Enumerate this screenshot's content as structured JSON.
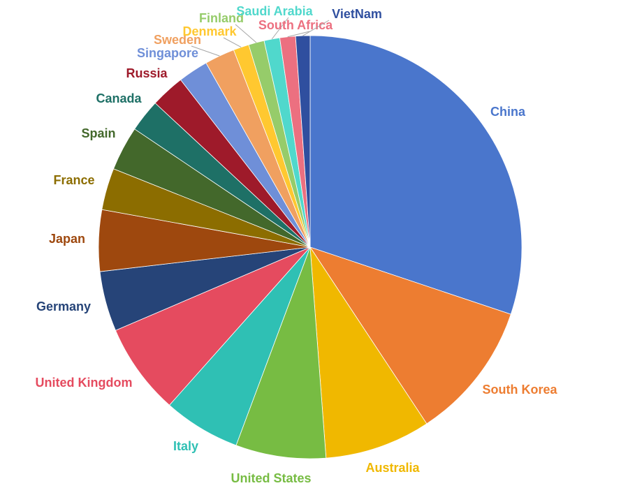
{
  "chart_data": {
    "type": "pie",
    "categories": [
      "China",
      "South Korea",
      "Australia",
      "United States",
      "Italy",
      "United Kingdom",
      "Germany",
      "Japan",
      "France",
      "Spain",
      "Canada",
      "Russia",
      "Singapore",
      "Sweden",
      "Denmark",
      "Finland",
      "Saudi Arabia",
      "South Africa",
      "VietNam"
    ],
    "values": [
      30.2,
      10.6,
      8.1,
      6.9,
      5.9,
      7.0,
      4.6,
      4.7,
      3.2,
      3.4,
      2.5,
      2.6,
      2.3,
      2.3,
      1.2,
      1.2,
      1.2,
      1.2,
      1.1
    ],
    "colors": [
      "#4a76cc",
      "#ed7d31",
      "#f0b800",
      "#77bc43",
      "#2fc0b4",
      "#e54b5f",
      "#264478",
      "#9e480e",
      "#8c6d00",
      "#43682b",
      "#1e7066",
      "#9e1a2a",
      "#6f8fd8",
      "#f0a060",
      "#ffc830",
      "#96cc6a",
      "#50d8cc",
      "#ec7080",
      "#2f4f9f"
    ]
  }
}
